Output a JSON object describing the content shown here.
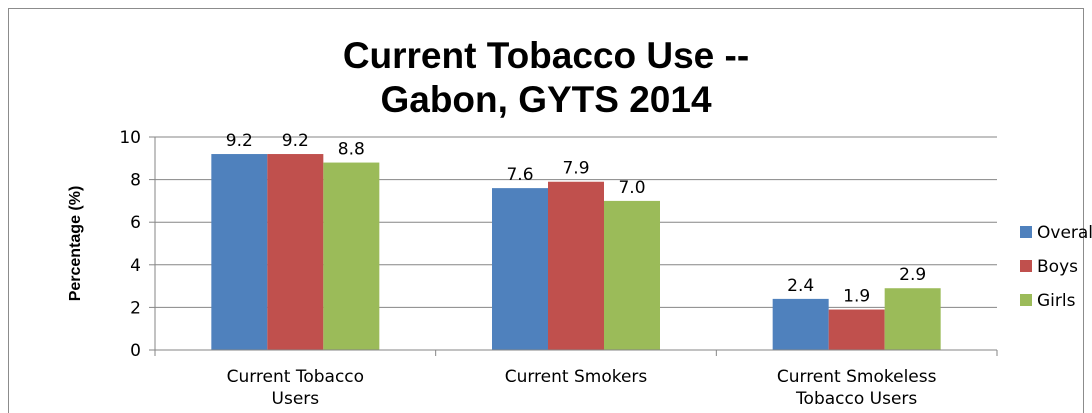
{
  "chart_data": {
    "type": "bar",
    "title_lines": [
      "Current Tobacco Use --",
      "Gabon, GYTS 2014"
    ],
    "xlabel": "",
    "ylabel": "Percentage (%)",
    "ylim": [
      0,
      10
    ],
    "yticks": [
      0,
      2,
      4,
      6,
      8,
      10
    ],
    "gridlines": true,
    "legend_position": "right",
    "categories": [
      [
        "Current Tobacco",
        "Users"
      ],
      [
        "Current Smokers"
      ],
      [
        "Current Smokeless",
        "Tobacco Users"
      ]
    ],
    "series": [
      {
        "name": "Overall",
        "color": "#4f81bd",
        "values": [
          9.2,
          7.6,
          2.4
        ],
        "labels": [
          "9.2",
          "7.6",
          "2.4"
        ]
      },
      {
        "name": "Boys",
        "color": "#c0504d",
        "values": [
          9.2,
          7.9,
          1.9
        ],
        "labels": [
          "9.2",
          "7.9",
          "1.9"
        ]
      },
      {
        "name": "Girls",
        "color": "#9bbb59",
        "values": [
          8.8,
          7.0,
          2.9
        ],
        "labels": [
          "8.8",
          "7.0",
          "2.9"
        ]
      }
    ]
  }
}
